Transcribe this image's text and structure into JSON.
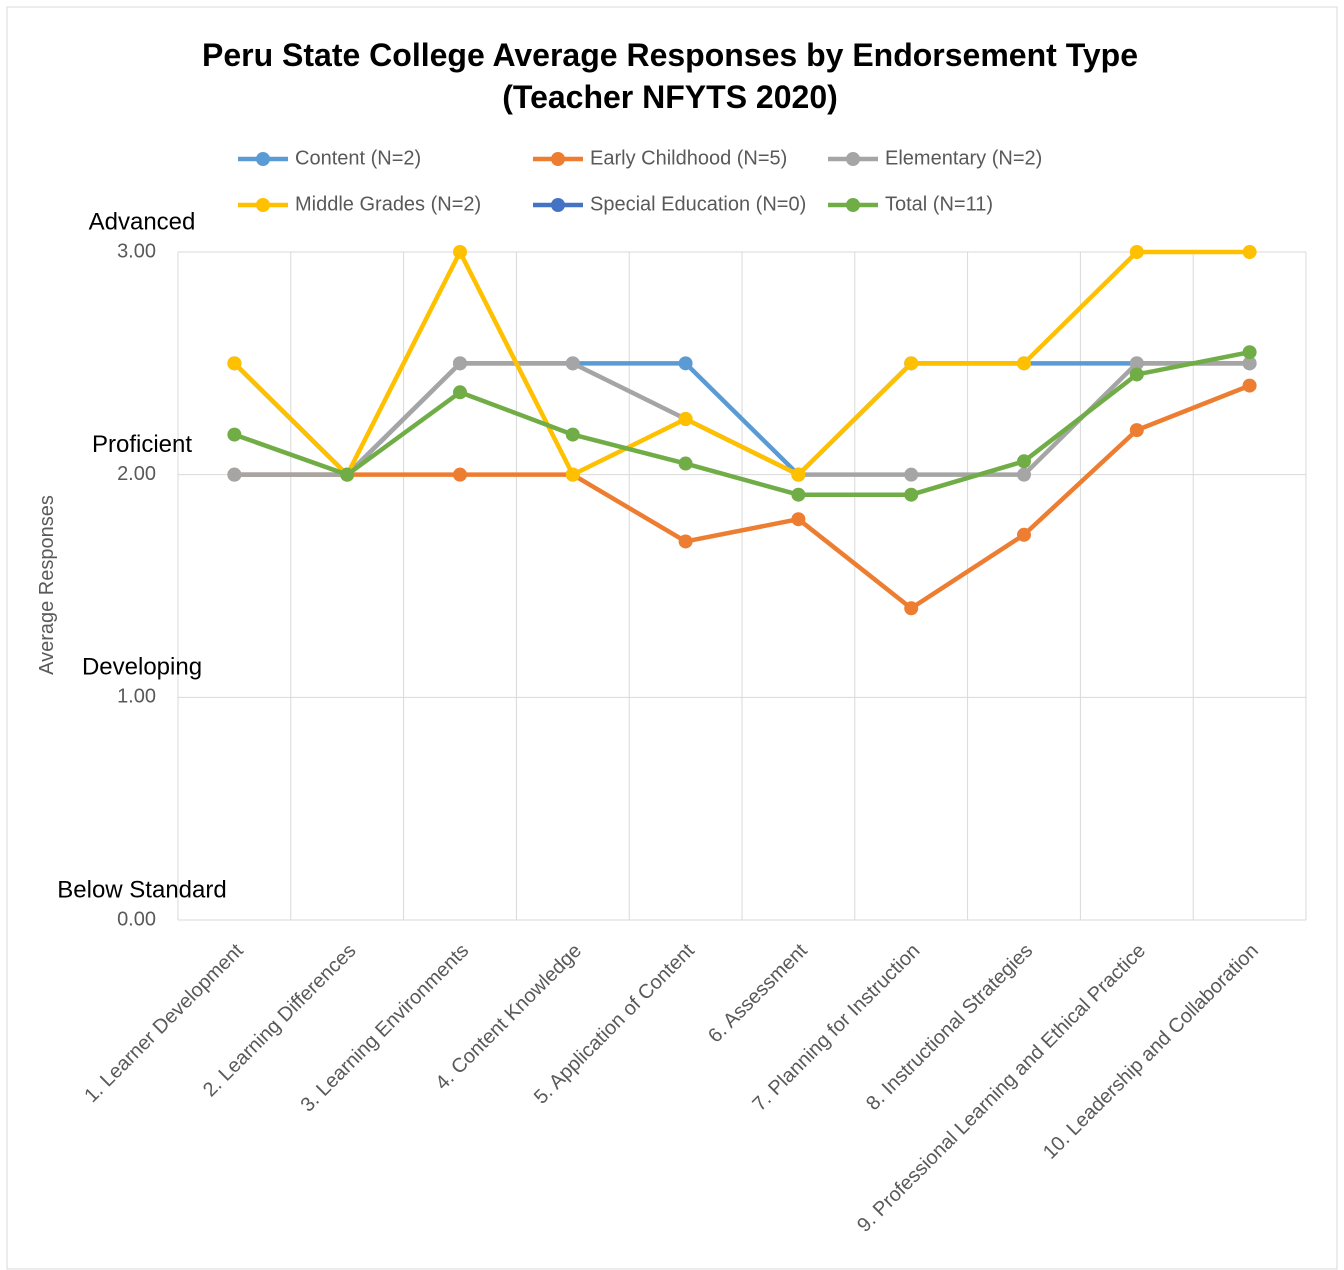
{
  "chart_data": {
    "type": "line",
    "title": "Peru State College Average Responses by Endorsement Type (Teacher NFYTS 2020)",
    "y_label": "Average Responses",
    "categories": [
      "1. Learner Development",
      "2. Learning Differences",
      "3. Learning Environments",
      "4. Content Knowledge",
      "5. Application of Content",
      "6. Assessment",
      "7. Planning for Instruction",
      "8. Instructional Strategies",
      "9. Professional Learning and Ethical Practice",
      "10. Leadership and Collaboration"
    ],
    "series": [
      {
        "name": "Content (N=2)",
        "color": "#5b9bd5",
        "values": [
          2.5,
          2.0,
          2.5,
          2.5,
          2.5,
          2.0,
          2.5,
          2.5,
          2.5,
          2.5
        ]
      },
      {
        "name": "Early Childhood (N=5)",
        "color": "#ed7d31",
        "values": [
          2.0,
          2.0,
          2.0,
          2.0,
          1.7,
          1.8,
          1.4,
          1.73,
          2.2,
          2.4
        ]
      },
      {
        "name": "Elementary (N=2)",
        "color": "#a5a5a5",
        "values": [
          2.0,
          2.0,
          2.5,
          2.5,
          2.25,
          2.0,
          2.0,
          2.0,
          2.5,
          2.5
        ]
      },
      {
        "name": "Middle Grades (N=2)",
        "color": "#ffc000",
        "values": [
          2.5,
          2.0,
          3.0,
          2.0,
          2.25,
          2.0,
          2.5,
          2.5,
          3.0,
          3.0
        ]
      },
      {
        "name": "Special Education (N=0)",
        "color": "#4472c4",
        "values": [
          null,
          null,
          null,
          null,
          null,
          null,
          null,
          null,
          null,
          null
        ]
      },
      {
        "name": "Total (N=11)",
        "color": "#70ad47",
        "values": [
          2.18,
          2.0,
          2.37,
          2.18,
          2.05,
          1.91,
          1.91,
          2.06,
          2.45,
          2.55
        ]
      }
    ],
    "ylim": [
      0,
      3
    ],
    "yticks": [
      {
        "value": 0,
        "label": "0.00"
      },
      {
        "value": 1,
        "label": "1.00"
      },
      {
        "value": 2,
        "label": "2.00"
      },
      {
        "value": 3,
        "label": "3.00"
      }
    ],
    "level_labels": [
      {
        "value": 0,
        "label": "Below Standard"
      },
      {
        "value": 1,
        "label": "Developing"
      },
      {
        "value": 2,
        "label": "Proficient"
      },
      {
        "value": 3,
        "label": "Advanced"
      }
    ],
    "grid": true,
    "legend": "top"
  }
}
